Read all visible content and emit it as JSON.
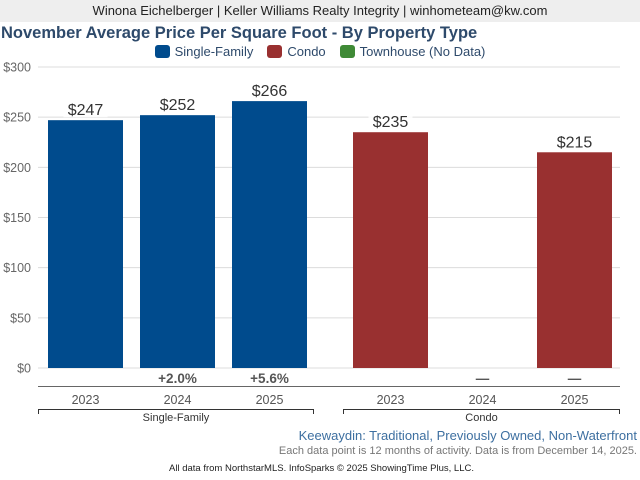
{
  "header": {
    "agent_line": "Winona Eichelberger | Keller Williams Realty Integrity | winhometeam@kw.com"
  },
  "legend": [
    {
      "label": "Single-Family",
      "color": "#004b8d"
    },
    {
      "label": "Condo",
      "color": "#993030"
    },
    {
      "label": "Townhouse (No Data)",
      "color": "#3f8a36"
    }
  ],
  "chart_data": {
    "type": "bar",
    "title": "November Average Price Per Square Foot - By Property Type",
    "xlabel": "",
    "ylabel": "",
    "ylim": [
      0,
      300
    ],
    "yticks": [
      0,
      50,
      100,
      150,
      200,
      250,
      300
    ],
    "ytick_labels": [
      "$0",
      "$50",
      "$100",
      "$150",
      "$200",
      "$250",
      "$300"
    ],
    "grid": true,
    "legend_position": "top-center",
    "groups": [
      {
        "name": "Single-Family",
        "color": "#004b8d",
        "categories": [
          "2023",
          "2024",
          "2025"
        ],
        "values": [
          247,
          252,
          266
        ],
        "labels": [
          "$247",
          "$252",
          "$266"
        ],
        "changes": [
          "",
          "+2.0%",
          "+5.6%"
        ]
      },
      {
        "name": "Condo",
        "color": "#993030",
        "categories": [
          "2023",
          "2024",
          "2025"
        ],
        "values": [
          235,
          null,
          215
        ],
        "labels": [
          "$235",
          "",
          "$215"
        ],
        "changes": [
          "",
          "—",
          "—"
        ]
      }
    ]
  },
  "subtitle": "Keewaydin: Traditional, Previously Owned, Non-Waterfront",
  "note": "Each data point is 12 months of activity. Data is from December 14, 2025.",
  "footer": "All data from NorthstarMLS. InfoSparks © 2025 ShowingTime Plus, LLC."
}
